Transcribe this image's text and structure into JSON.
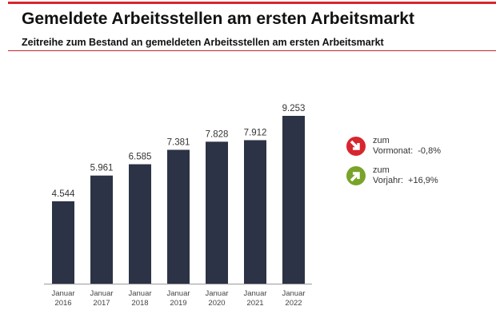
{
  "header": {
    "title": "Gemeldete Arbeitsstellen am ersten Arbeitsmarkt",
    "subtitle": "Zeitreihe zum Bestand an gemeldeten Arbeitsstellen am ersten Arbeitsmarkt"
  },
  "chart_data": {
    "type": "bar",
    "categories": [
      [
        "Januar",
        "2016"
      ],
      [
        "Januar",
        "2017"
      ],
      [
        "Januar",
        "2018"
      ],
      [
        "Januar",
        "2019"
      ],
      [
        "Januar",
        "2020"
      ],
      [
        "Januar",
        "2021"
      ],
      [
        "Januar",
        "2022"
      ]
    ],
    "values": [
      4544,
      5961,
      6585,
      7381,
      7828,
      7912,
      9253
    ],
    "labels": [
      "4.544",
      "5.961",
      "6.585",
      "7.381",
      "7.828",
      "7.912",
      "9.253"
    ],
    "bar_color": "#2c3346",
    "grid": false
  },
  "indicators": [
    {
      "line1": "zum",
      "line2": "Vormonat:",
      "value": "-0,8%",
      "icon": "arrow-down-right-icon",
      "color": "#d7262e"
    },
    {
      "line1": "zum",
      "line2": "Vorjahr:",
      "value": "+16,9%",
      "icon": "arrow-up-right-icon",
      "color": "#7aa32a"
    }
  ],
  "colors": {
    "accent": "#d7262e"
  }
}
